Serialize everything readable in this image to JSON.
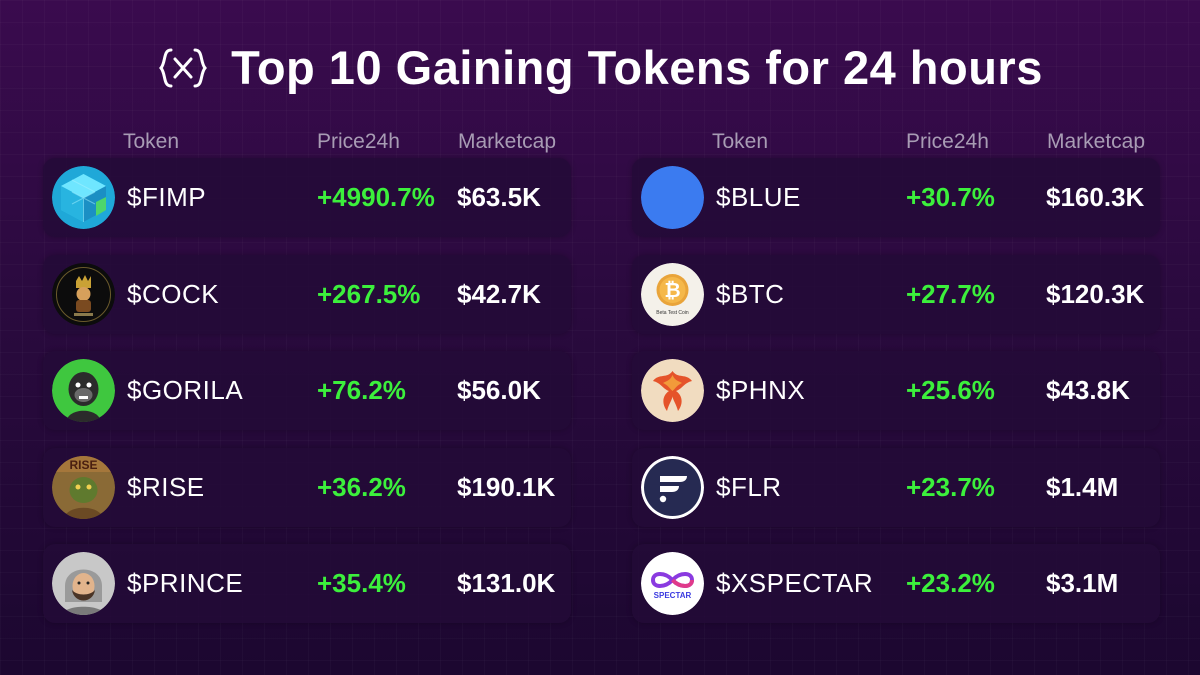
{
  "header": {
    "title": "Top 10 Gaining Tokens for 24 hours",
    "logo_icon": "curly-x-logo-icon"
  },
  "columns": {
    "token": "Token",
    "price": "Price24h",
    "marketcap": "Marketcap"
  },
  "colors": {
    "background": "#2a0a3e",
    "positive": "#3cf03c",
    "row_background": "#230a37",
    "header_text": "#a89cb4"
  },
  "left_tokens": [
    {
      "symbol": "$FIMP",
      "change": "+4990.7%",
      "marketcap": "$63.5K",
      "icon": "fimp-cube-icon"
    },
    {
      "symbol": "$COCK",
      "change": "+267.5%",
      "marketcap": "$42.7K",
      "icon": "cock-kings-avatar"
    },
    {
      "symbol": "$GORILA",
      "change": "+76.2%",
      "marketcap": "$56.0K",
      "icon": "gorilla-avatar"
    },
    {
      "symbol": "$RISE",
      "change": "+36.2%",
      "marketcap": "$190.1K",
      "icon": "rise-avatar"
    },
    {
      "symbol": "$PRINCE",
      "change": "+35.4%",
      "marketcap": "$131.0K",
      "icon": "prince-avatar"
    }
  ],
  "right_tokens": [
    {
      "symbol": "$BLUE",
      "change": "+30.7%",
      "marketcap": "$160.3K",
      "icon": "blue-circle-icon"
    },
    {
      "symbol": "$BTC",
      "change": "+27.7%",
      "marketcap": "$120.3K",
      "icon": "bitcoin-coin-icon"
    },
    {
      "symbol": "$PHNX",
      "change": "+25.6%",
      "marketcap": "$43.8K",
      "icon": "phoenix-avatar"
    },
    {
      "symbol": "$FLR",
      "change": "+23.7%",
      "marketcap": "$1.4M",
      "icon": "flare-icon"
    },
    {
      "symbol": "$XSPECTAR",
      "change": "+23.2%",
      "marketcap": "$3.1M",
      "icon": "xspectar-infinity-icon"
    }
  ],
  "avatar_captions": {
    "btc": "Beta Test Coin",
    "xspectar": "SPECTAR",
    "rise": "RISE"
  }
}
